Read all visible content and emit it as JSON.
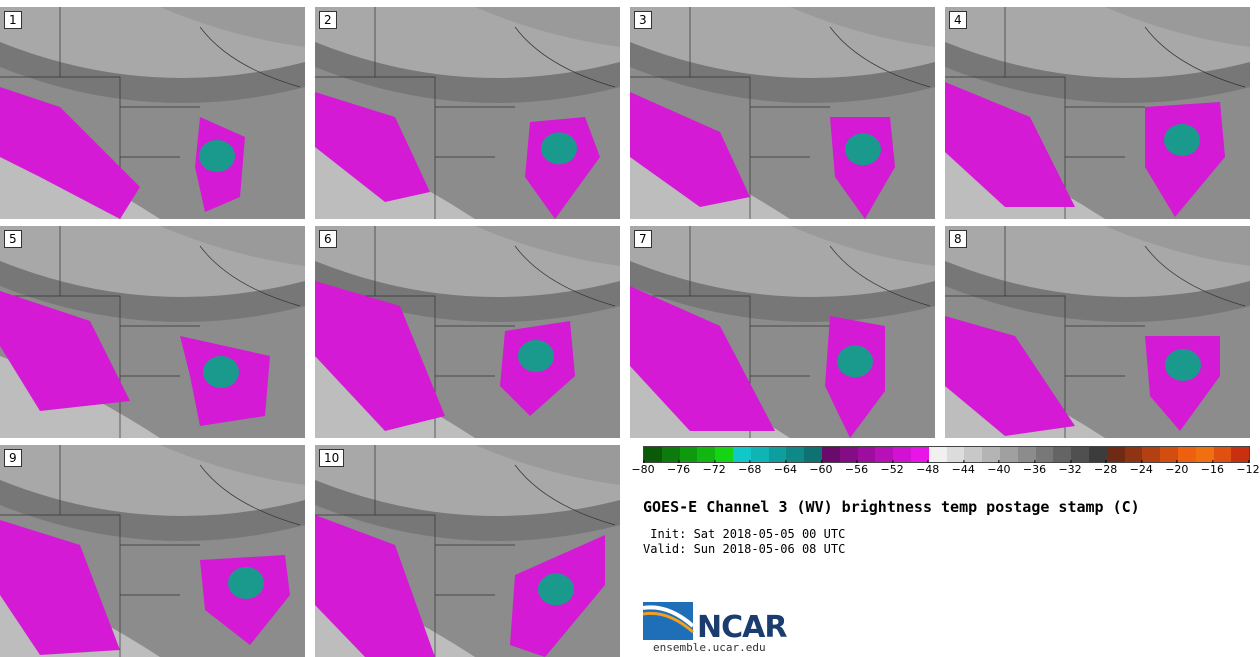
{
  "panels": [
    {
      "label": "1"
    },
    {
      "label": "2"
    },
    {
      "label": "3"
    },
    {
      "label": "4"
    },
    {
      "label": "5"
    },
    {
      "label": "6"
    },
    {
      "label": "7"
    },
    {
      "label": "8"
    },
    {
      "label": "9"
    },
    {
      "label": "10"
    }
  ],
  "colorbar": {
    "ticks": [
      "−80",
      "−76",
      "−72",
      "−68",
      "−64",
      "−60",
      "−56",
      "−52",
      "−48",
      "−44",
      "−40",
      "−36",
      "−32",
      "−28",
      "−24",
      "−20",
      "−16",
      "−12"
    ],
    "colors": [
      "#0a5a0a",
      "#0c7a0c",
      "#0e9a0e",
      "#11b611",
      "#14d414",
      "#10c8c8",
      "#0fb4b4",
      "#0f9e9e",
      "#0f8888",
      "#0f7272",
      "#6a0a6a",
      "#840c84",
      "#9e0e9e",
      "#b810b8",
      "#d212d2",
      "#e814e8",
      "#f0f0f0",
      "#dcdcdc",
      "#c8c8c8",
      "#b4b4b4",
      "#a0a0a0",
      "#8c8c8c",
      "#787878",
      "#646464",
      "#505050",
      "#3c3c3c",
      "#6e2a12",
      "#8e3412",
      "#b24012",
      "#d24e10",
      "#ee6010",
      "#f07010",
      "#e05010",
      "#c83010"
    ]
  },
  "title": "GOES-E Channel 3 (WV) brightness temp postage stamp (C)",
  "init": " Init: Sat 2018-05-05 00 UTC",
  "valid": "Valid: Sun 2018-05-06 08 UTC",
  "logo": {
    "name": "NCAR",
    "url": "ensemble.ucar.edu"
  },
  "colors": {
    "magenta": "#d41ad4",
    "teal": "#1a9a8c",
    "gray_dark": "#7a7a7a",
    "gray_light": "#c8c8c8"
  }
}
